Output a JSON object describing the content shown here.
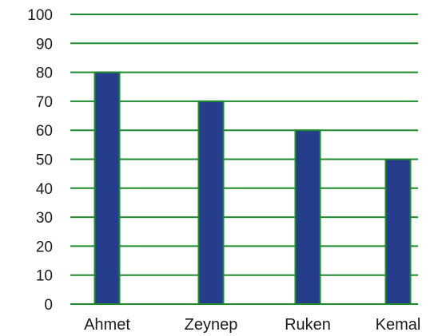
{
  "colors": {
    "grid": "#1e8a2e",
    "bar_fill": "#263d8c",
    "bar_stroke": "#1e8a2e",
    "text": "#1a1a1a",
    "background": "#ffffff"
  },
  "chart_data": {
    "type": "bar",
    "title": "",
    "xlabel": "",
    "ylabel": "",
    "categories": [
      "Ahmet",
      "Zeynep",
      "Ruken",
      "Kemal"
    ],
    "values": [
      80,
      70,
      60,
      50
    ],
    "ylim": [
      0,
      100
    ],
    "yticks": [
      "0",
      "10",
      "20",
      "30",
      "40",
      "50",
      "60",
      "70",
      "80",
      "90",
      "100"
    ],
    "grid": true,
    "legend": "none"
  }
}
